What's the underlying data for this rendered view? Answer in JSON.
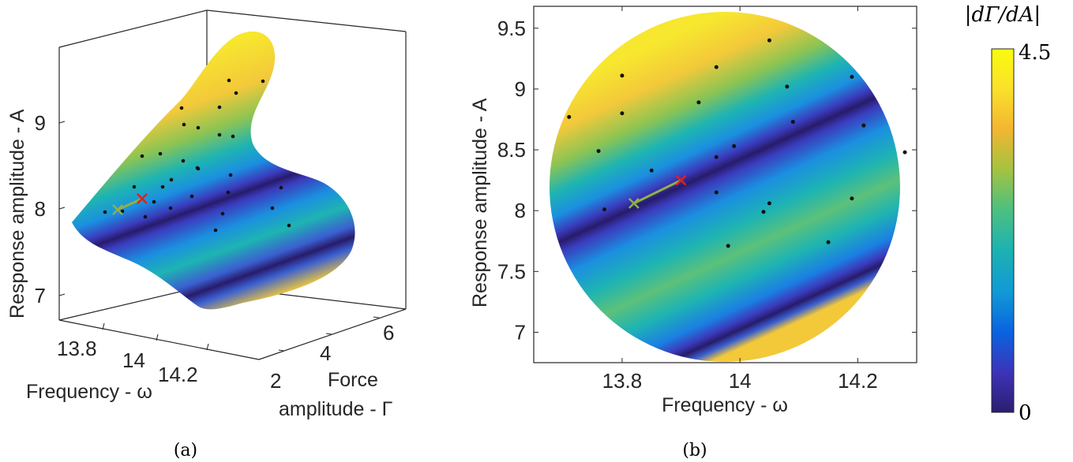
{
  "chart_data": [
    {
      "type": "surface",
      "panel_label": "(a)",
      "xlabel": "Frequency - ω",
      "ylabel": "Force amplitude - Γ",
      "ylabel_lines": [
        "Force",
        "amplitude - Γ"
      ],
      "zlabel": "Response amplitude - A",
      "x_ticks": [
        "13.8",
        "14",
        "14.2"
      ],
      "y_ticks": [
        "2",
        "4",
        "6"
      ],
      "z_ticks": [
        "7",
        "8",
        "9"
      ],
      "start_marker": {
        "x": 13.82,
        "z": 8.0,
        "symbol": "x",
        "color": "#8fb04a"
      },
      "end_marker": {
        "x": 13.9,
        "z": 8.12,
        "symbol": "x",
        "color": "#e02020"
      },
      "sample_count": 30
    },
    {
      "type": "heatmap",
      "panel_label": "(b)",
      "xlabel": "Frequency - ω",
      "ylabel": "Response amplitude - A",
      "xlim": [
        13.65,
        14.3
      ],
      "ylim": [
        6.75,
        9.68
      ],
      "x_ticks": [
        13.8,
        14,
        14.2
      ],
      "y_ticks": [
        7,
        7.5,
        8,
        8.5,
        9,
        9.5
      ],
      "y_tick_labels": [
        "7",
        "7.5",
        "8",
        "8.5",
        "9",
        "9.5"
      ],
      "domain": "circle",
      "start_marker": {
        "x": 13.82,
        "y": 8.06,
        "symbol": "x",
        "color": "#8fb04a"
      },
      "end_marker": {
        "x": 13.9,
        "y": 8.25,
        "symbol": "x",
        "color": "#e02020"
      },
      "points": [
        {
          "x": 13.71,
          "y": 8.77
        },
        {
          "x": 13.76,
          "y": 8.49
        },
        {
          "x": 13.77,
          "y": 8.01
        },
        {
          "x": 13.8,
          "y": 9.11
        },
        {
          "x": 13.8,
          "y": 8.8
        },
        {
          "x": 13.85,
          "y": 8.33
        },
        {
          "x": 13.93,
          "y": 8.89
        },
        {
          "x": 13.96,
          "y": 9.18
        },
        {
          "x": 13.96,
          "y": 8.44
        },
        {
          "x": 13.96,
          "y": 8.15
        },
        {
          "x": 13.98,
          "y": 7.71
        },
        {
          "x": 13.99,
          "y": 8.53
        },
        {
          "x": 14.05,
          "y": 9.4
        },
        {
          "x": 14.05,
          "y": 8.06
        },
        {
          "x": 14.04,
          "y": 7.99
        },
        {
          "x": 14.08,
          "y": 9.02
        },
        {
          "x": 14.09,
          "y": 8.73
        },
        {
          "x": 14.15,
          "y": 7.74
        },
        {
          "x": 14.19,
          "y": 9.1
        },
        {
          "x": 14.19,
          "y": 8.1
        },
        {
          "x": 14.21,
          "y": 8.7
        },
        {
          "x": 14.28,
          "y": 8.48
        }
      ]
    }
  ],
  "colorbar": {
    "label": "|dΓ/dA|",
    "min_label": "0",
    "max_label": "4.5",
    "range": [
      0,
      4.5
    ],
    "colors": [
      "#2b1e6f",
      "#3d33b8",
      "#0a63e0",
      "#1199d6",
      "#1db3b0",
      "#4ec07f",
      "#a6c23f",
      "#f2b632",
      "#fae12a",
      "#f9fb0e"
    ]
  }
}
